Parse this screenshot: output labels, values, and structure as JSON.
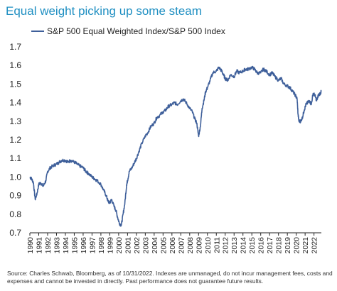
{
  "title": "Equal weight picking up some steam",
  "source": "Source: Charles Schwab, Bloomberg, as of 10/31/2022. Indexes are unmanaged, do not incur management fees, costs and expenses and cannot be invested in directly.  Past performance does not guarantee future results.",
  "colors": {
    "title": "#1f8fc2",
    "series": "#3e5f9a",
    "axis": "#222222"
  },
  "chart_data": {
    "type": "line",
    "title": "Equal weight picking up some steam",
    "xlabel": "",
    "ylabel": "",
    "xlim": [
      1990,
      2022.83
    ],
    "ylim": [
      0.7,
      1.7
    ],
    "grid": false,
    "legend": "top-left",
    "y_ticks": [
      "0.7",
      "0.8",
      "0.9",
      "1.0",
      "1.1",
      "1.2",
      "1.3",
      "1.4",
      "1.5",
      "1.6",
      "1.7"
    ],
    "x_ticks": [
      "1990",
      "1991",
      "1992",
      "1993",
      "1994",
      "1995",
      "1996",
      "1997",
      "1998",
      "1999",
      "2000",
      "2001",
      "2002",
      "2003",
      "2004",
      "2005",
      "2006",
      "2007",
      "2008",
      "2009",
      "2010",
      "2011",
      "2012",
      "2013",
      "2014",
      "2015",
      "2016",
      "2017",
      "2018",
      "2019",
      "2020",
      "2021",
      "2022"
    ],
    "series": [
      {
        "name": "S&P 500 Equal Weighted Index/S&P 500 Index",
        "x": [
          1990.0,
          1990.2,
          1990.4,
          1990.6,
          1990.8,
          1991.0,
          1991.2,
          1991.5,
          1991.8,
          1992.0,
          1992.3,
          1992.6,
          1993.0,
          1993.3,
          1993.6,
          1994.0,
          1994.3,
          1994.6,
          1995.0,
          1995.3,
          1995.6,
          1996.0,
          1996.3,
          1996.6,
          1997.0,
          1997.3,
          1997.6,
          1998.0,
          1998.3,
          1998.6,
          1998.8,
          1999.0,
          1999.2,
          1999.5,
          1999.7,
          1999.9,
          2000.1,
          2000.3,
          2000.5,
          2000.7,
          2000.9,
          2001.0,
          2001.2,
          2001.5,
          2001.8,
          2002.0,
          2002.3,
          2002.6,
          2003.0,
          2003.3,
          2003.6,
          2004.0,
          2004.3,
          2004.6,
          2005.0,
          2005.3,
          2005.6,
          2006.0,
          2006.3,
          2006.6,
          2007.0,
          2007.3,
          2007.6,
          2008.0,
          2008.3,
          2008.6,
          2008.8,
          2009.0,
          2009.2,
          2009.4,
          2009.6,
          2009.8,
          2010.0,
          2010.3,
          2010.6,
          2011.0,
          2011.3,
          2011.6,
          2011.8,
          2012.0,
          2012.3,
          2012.6,
          2013.0,
          2013.3,
          2013.6,
          2014.0,
          2014.3,
          2014.6,
          2015.0,
          2015.3,
          2015.6,
          2016.0,
          2016.3,
          2016.6,
          2017.0,
          2017.3,
          2017.6,
          2018.0,
          2018.3,
          2018.6,
          2019.0,
          2019.3,
          2019.6,
          2019.9,
          2020.1,
          2020.2,
          2020.3,
          2020.5,
          2020.7,
          2020.9,
          2021.1,
          2021.3,
          2021.5,
          2021.7,
          2021.9,
          2022.1,
          2022.3,
          2022.5,
          2022.7,
          2022.83
        ],
        "values": [
          1.0,
          0.99,
          0.97,
          0.88,
          0.91,
          0.96,
          0.97,
          0.95,
          0.98,
          1.03,
          1.05,
          1.06,
          1.07,
          1.08,
          1.09,
          1.09,
          1.08,
          1.09,
          1.08,
          1.07,
          1.06,
          1.05,
          1.03,
          1.02,
          1.0,
          0.99,
          0.98,
          0.96,
          0.93,
          0.9,
          0.87,
          0.86,
          0.88,
          0.84,
          0.82,
          0.78,
          0.75,
          0.74,
          0.8,
          0.86,
          0.96,
          0.98,
          1.03,
          1.05,
          1.08,
          1.1,
          1.14,
          1.18,
          1.22,
          1.24,
          1.27,
          1.29,
          1.32,
          1.33,
          1.35,
          1.36,
          1.38,
          1.39,
          1.4,
          1.39,
          1.41,
          1.42,
          1.4,
          1.37,
          1.35,
          1.31,
          1.29,
          1.22,
          1.27,
          1.37,
          1.41,
          1.46,
          1.48,
          1.52,
          1.56,
          1.57,
          1.59,
          1.57,
          1.55,
          1.53,
          1.52,
          1.55,
          1.54,
          1.57,
          1.56,
          1.57,
          1.58,
          1.58,
          1.59,
          1.58,
          1.56,
          1.56,
          1.58,
          1.57,
          1.55,
          1.56,
          1.54,
          1.52,
          1.53,
          1.5,
          1.49,
          1.48,
          1.46,
          1.44,
          1.42,
          1.34,
          1.3,
          1.3,
          1.32,
          1.36,
          1.39,
          1.4,
          1.41,
          1.39,
          1.45,
          1.44,
          1.41,
          1.44,
          1.45,
          1.46
        ]
      }
    ]
  }
}
